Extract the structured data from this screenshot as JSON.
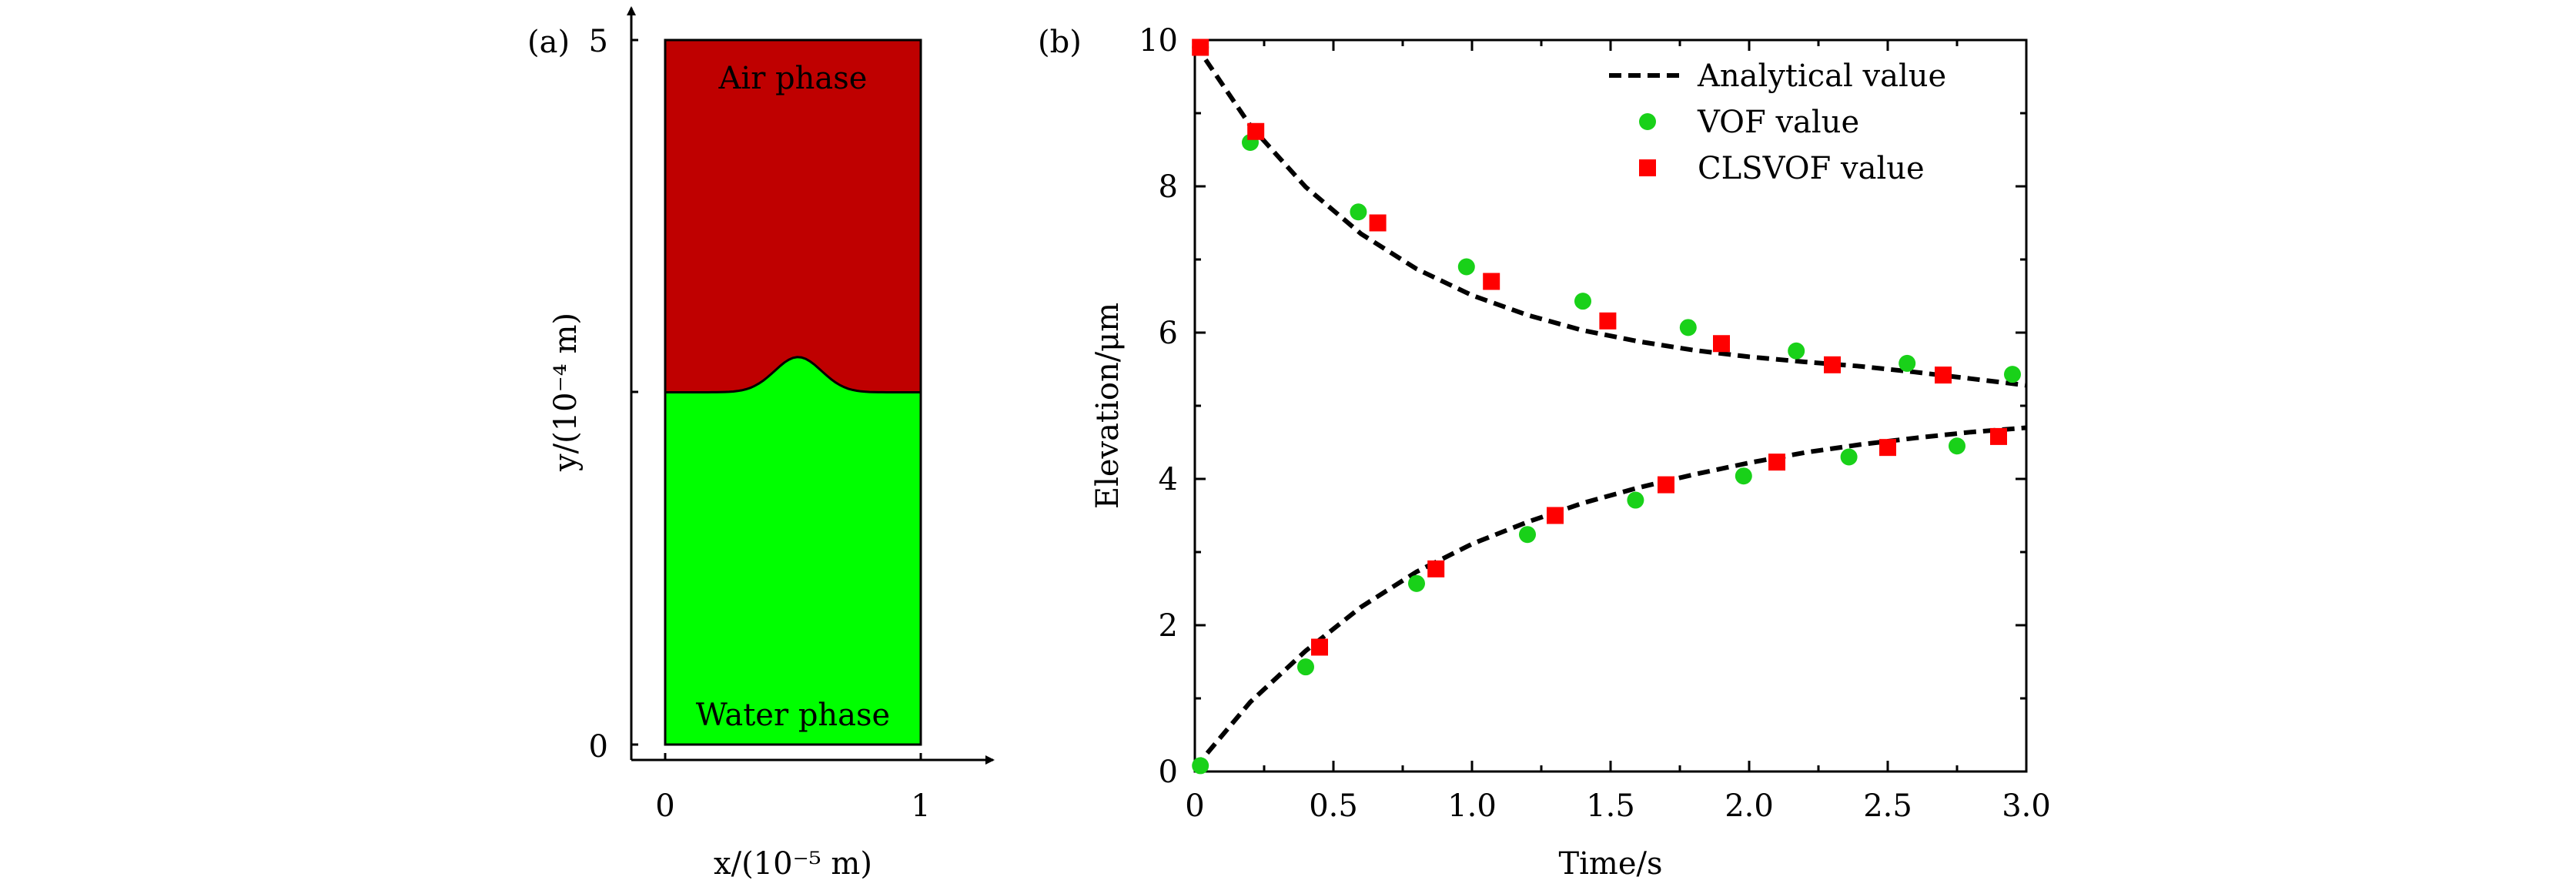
{
  "chart_data": [
    {
      "panel": "(a)",
      "type": "diagram",
      "title": "",
      "x_tick_labels": [
        "0",
        "1"
      ],
      "y_tick_labels": [
        "0",
        "5"
      ],
      "xlabel": "x/(10⁻⁵ m)",
      "ylabel": "y/(10⁻⁴ m)",
      "xlim": [
        0,
        1
      ],
      "ylim": [
        0,
        5
      ],
      "regions": [
        {
          "label": "Air phase",
          "color": "#bf0000"
        },
        {
          "label": "Water phase",
          "color": "#00ff00"
        }
      ],
      "interface_elevation": [
        2.5,
        2.75
      ]
    },
    {
      "panel": "(b)",
      "type": "line",
      "title": "",
      "xlabel": "Time/s",
      "ylabel": "Elevation/μm",
      "xlim": [
        0,
        3
      ],
      "ylim": [
        0,
        10
      ],
      "x_tick_labels": [
        "0",
        "0.5",
        "1.0",
        "1.5",
        "2.0",
        "2.5",
        "3.0"
      ],
      "y_tick_labels": [
        "0",
        "2",
        "4",
        "6",
        "8",
        "10"
      ],
      "grid": false,
      "legend_position": "top-right",
      "series": [
        {
          "name": "Analytical value",
          "style": "dashed-line",
          "color": "#000000",
          "upper": {
            "x": [
              0,
              0.2,
              0.4,
              0.6,
              0.8,
              1.0,
              1.2,
              1.4,
              1.6,
              1.8,
              2.0,
              2.2,
              2.4,
              2.6,
              2.8,
              3.0
            ],
            "y": [
              9.95,
              8.83,
              7.99,
              7.35,
              6.87,
              6.51,
              6.24,
              6.03,
              5.88,
              5.76,
              5.67,
              5.6,
              5.54,
              5.46,
              5.37,
              5.28
            ]
          },
          "lower": {
            "x": [
              0,
              0.2,
              0.4,
              0.6,
              0.8,
              1.0,
              1.2,
              1.4,
              1.6,
              1.8,
              2.0,
              2.2,
              2.4,
              2.6,
              2.8,
              3.0
            ],
            "y": [
              0.05,
              0.95,
              1.65,
              2.25,
              2.73,
              3.11,
              3.41,
              3.67,
              3.88,
              4.06,
              4.22,
              4.36,
              4.47,
              4.56,
              4.64,
              4.7
            ]
          }
        },
        {
          "name": "VOF value",
          "marker": "circle",
          "color": "#19d119",
          "x": [
            0.02,
            0.2,
            0.59,
            0.98,
            1.4,
            1.78,
            2.17,
            2.57,
            2.95,
            0.02,
            0.4,
            0.8,
            1.2,
            1.59,
            1.98,
            2.36,
            2.75
          ],
          "y": [
            9.9,
            8.6,
            7.65,
            6.9,
            6.43,
            6.07,
            5.75,
            5.58,
            5.43,
            0.08,
            1.43,
            2.57,
            3.24,
            3.71,
            4.04,
            4.3,
            4.45
          ]
        },
        {
          "name": "CLSVOF value",
          "marker": "square",
          "color": "#ff0000",
          "x": [
            0.02,
            0.22,
            0.66,
            1.07,
            1.49,
            1.9,
            2.3,
            2.7,
            0.45,
            0.87,
            1.3,
            1.7,
            2.1,
            2.5,
            2.9
          ],
          "y": [
            9.9,
            8.75,
            7.5,
            6.7,
            6.16,
            5.85,
            5.56,
            5.42,
            1.7,
            2.77,
            3.5,
            3.92,
            4.23,
            4.43,
            4.58
          ]
        }
      ]
    }
  ]
}
